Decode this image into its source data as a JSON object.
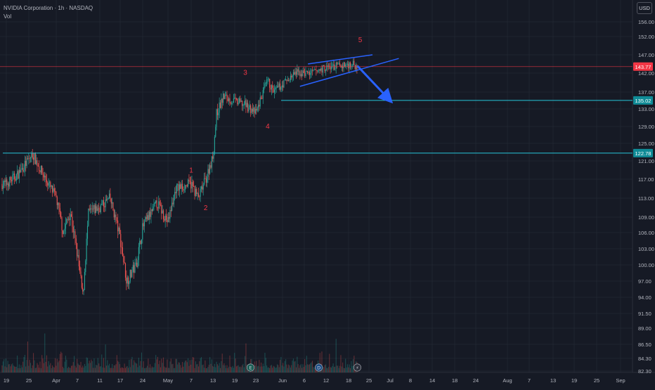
{
  "header": {
    "title": "NVIDIA Corporation · 1h · NASDAQ",
    "sub": "Vol"
  },
  "currency": "USD",
  "colors": {
    "background": "#161a25",
    "up": "#26a69a",
    "down": "#ef5350",
    "level": "#26c6da",
    "price": "#f23645",
    "drawing": "#2962ff",
    "annotation": "#f23645"
  },
  "chart_data": {
    "type": "candlestick",
    "y_axis": {
      "side": "right",
      "ticks": [
        "156.00",
        "152.00",
        "147.00",
        "142.00",
        "137.00",
        "133.00",
        "129.00",
        "125.00",
        "121.00",
        "117.00",
        "113.00",
        "109.00",
        "106.00",
        "103.00",
        "100.00",
        "97.00",
        "94.00",
        "91.50",
        "89.00",
        "86.50",
        "84.30",
        "82.30"
      ],
      "range": [
        82.3,
        156.0
      ]
    },
    "x_axis": {
      "ticks": [
        "19",
        "25",
        "Apr",
        "7",
        "11",
        "17",
        "24",
        "May",
        "7",
        "13",
        "19",
        "23",
        "Jun",
        "6",
        "12",
        "18",
        "25",
        "Jul",
        "8",
        "14",
        "18",
        "24",
        "Aug",
        "7",
        "13",
        "19",
        "25",
        "Sep"
      ]
    },
    "path_points": [
      {
        "t": "Mar 19",
        "p": 116
      },
      {
        "t": "Mar 22",
        "p": 118
      },
      {
        "t": "Mar 26",
        "p": 122.5
      },
      {
        "t": "Mar 28",
        "p": 119
      },
      {
        "t": "Apr 1",
        "p": 113
      },
      {
        "t": "Apr 3",
        "p": 106
      },
      {
        "t": "Apr 5",
        "p": 110
      },
      {
        "t": "Apr 7",
        "p": 102
      },
      {
        "t": "Apr 8",
        "p": 94
      },
      {
        "t": "Apr 9",
        "p": 110
      },
      {
        "t": "Apr 11",
        "p": 111
      },
      {
        "t": "Apr 14",
        "p": 113
      },
      {
        "t": "Apr 17",
        "p": 105
      },
      {
        "t": "Apr 19",
        "p": 97
      },
      {
        "t": "Apr 22",
        "p": 100
      },
      {
        "t": "Apr 24",
        "p": 107
      },
      {
        "t": "Apr 28",
        "p": 112
      },
      {
        "t": "May 1",
        "p": 108
      },
      {
        "t": "May 3",
        "p": 115
      },
      {
        "t": "May 7",
        "p": 116
      },
      {
        "t": "May 9",
        "p": 113
      },
      {
        "t": "May 11",
        "p": 117
      },
      {
        "t": "May 13",
        "p": 122
      },
      {
        "t": "May 14",
        "p": 132
      },
      {
        "t": "May 16",
        "p": 136
      },
      {
        "t": "May 18",
        "p": 135
      },
      {
        "t": "May 21",
        "p": 134
      },
      {
        "t": "May 23",
        "p": 132
      },
      {
        "t": "May 25",
        "p": 136
      },
      {
        "t": "May 27",
        "p": 140
      },
      {
        "t": "May 29",
        "p": 137
      },
      {
        "t": "Jun 1",
        "p": 139
      },
      {
        "t": "Jun 4",
        "p": 142
      },
      {
        "t": "Jun 8",
        "p": 142
      },
      {
        "t": "Jun 12",
        "p": 143.5
      },
      {
        "t": "Jun 16",
        "p": 144
      },
      {
        "t": "Jun 19",
        "p": 144.5
      },
      {
        "t": "Jun 21",
        "p": 143.8
      }
    ],
    "volume": {
      "label": "Vol",
      "max_range": [
        0,
        1
      ]
    },
    "horizontal_levels": [
      {
        "value": 135.02,
        "label": "135.02",
        "role": "support"
      },
      {
        "value": 122.78,
        "label": "122.78",
        "role": "support"
      }
    ],
    "last_price": {
      "value": 143.77,
      "label": "143.77"
    },
    "annotations": [
      {
        "text": "1",
        "t": "May 7",
        "p": 118.5
      },
      {
        "text": "2",
        "t": "May 11",
        "p": 110.5
      },
      {
        "text": "3",
        "t": "May 21",
        "p": 141.5
      },
      {
        "text": "4",
        "t": "May 27",
        "p": 128.5
      },
      {
        "text": "5",
        "t": "Jun 22",
        "p": 150.5
      }
    ],
    "drawings": [
      {
        "type": "trendline",
        "from": {
          "t": "Jun 7",
          "p": 144.5
        },
        "to": {
          "t": "Jun 26",
          "p": 147
        }
      },
      {
        "type": "trendline",
        "from": {
          "t": "Jun 5",
          "p": 138.5
        },
        "to": {
          "t": "Jul 4",
          "p": 146
        }
      },
      {
        "type": "arrow",
        "from": {
          "t": "Jun 21",
          "p": 144
        },
        "to": {
          "t": "Jul 1",
          "p": 135.02
        }
      }
    ],
    "event_markers": [
      {
        "type": "earnings",
        "glyph": "E",
        "t": "May 22"
      },
      {
        "type": "dividend",
        "glyph": "D",
        "t": "Jun 10"
      },
      {
        "type": "split",
        "glyph": "⚡",
        "t": "Jun 21"
      }
    ]
  }
}
